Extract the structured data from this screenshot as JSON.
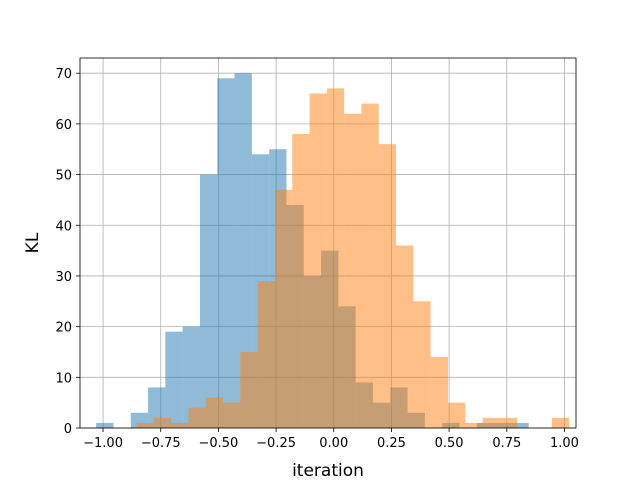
{
  "chart_data": {
    "type": "bar",
    "subtype": "overlapping histogram",
    "title": "",
    "xlabel": "iteration",
    "ylabel": "KL",
    "xlim": [
      -1.1,
      1.05
    ],
    "ylim": [
      0,
      73
    ],
    "xticks": [
      -1.0,
      -0.75,
      -0.5,
      -0.25,
      0.0,
      0.25,
      0.5,
      0.75,
      1.0
    ],
    "xtick_labels": [
      "−1.00",
      "−0.75",
      "−0.50",
      "−0.25",
      "0.00",
      "0.25",
      "0.50",
      "0.75",
      "1.00"
    ],
    "yticks": [
      0,
      10,
      20,
      30,
      40,
      50,
      60,
      70
    ],
    "ytick_labels": [
      "0",
      "10",
      "20",
      "30",
      "40",
      "50",
      "60",
      "70"
    ],
    "grid": true,
    "legend": "none",
    "series": [
      {
        "color": "#1f77b4",
        "opacity": 0.5,
        "bin_edges": [
          -1.03,
          -0.955,
          -0.88,
          -0.805,
          -0.73,
          -0.655,
          -0.58,
          -0.505,
          -0.43,
          -0.355,
          -0.28,
          -0.205,
          -0.13,
          -0.055,
          0.02,
          0.095,
          0.17,
          0.245,
          0.32,
          0.395,
          0.47,
          0.545,
          0.62,
          0.695,
          0.77,
          0.845
        ],
        "counts": [
          1,
          0,
          3,
          8,
          19,
          20,
          50,
          69,
          70,
          54,
          55,
          44,
          30,
          35,
          24,
          9,
          5,
          8,
          3,
          0,
          1,
          0,
          1,
          1,
          1
        ]
      },
      {
        "color": "#ff7f0e",
        "opacity": 0.5,
        "bin_edges": [
          -0.855,
          -0.78,
          -0.705,
          -0.63,
          -0.555,
          -0.48,
          -0.405,
          -0.33,
          -0.255,
          -0.18,
          -0.105,
          -0.03,
          0.045,
          0.12,
          0.195,
          0.27,
          0.345,
          0.42,
          0.495,
          0.57,
          0.645,
          0.72,
          0.795,
          0.87,
          0.945,
          1.02
        ],
        "counts": [
          1,
          2,
          1,
          4,
          6,
          5,
          15,
          29,
          47,
          58,
          66,
          67,
          62,
          64,
          56,
          36,
          25,
          14,
          5,
          1,
          2,
          2,
          0,
          0,
          2
        ]
      }
    ]
  }
}
